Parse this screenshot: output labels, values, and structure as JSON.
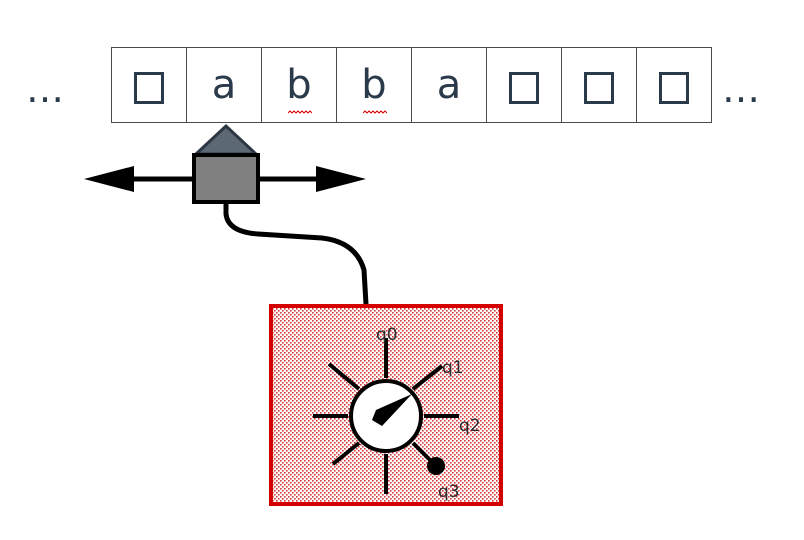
{
  "tape": {
    "left_ellipsis": "…",
    "right_ellipsis": "…",
    "cells": [
      {
        "symbol": "□",
        "blank": true,
        "underlined": false
      },
      {
        "symbol": "a",
        "blank": false,
        "underlined": false
      },
      {
        "symbol": "b",
        "blank": false,
        "underlined": true
      },
      {
        "symbol": "b",
        "blank": false,
        "underlined": true
      },
      {
        "symbol": "a",
        "blank": false,
        "underlined": false
      },
      {
        "symbol": "□",
        "blank": true,
        "underlined": false
      },
      {
        "symbol": "□",
        "blank": true,
        "underlined": false
      },
      {
        "symbol": "□",
        "blank": true,
        "underlined": false
      }
    ]
  },
  "control": {
    "states": [
      "q0",
      "q1",
      "q2",
      "q3"
    ],
    "current_state": "q1",
    "marked_state": "q3",
    "colors": {
      "border": "#d40000",
      "dots": "#d63a3a",
      "head": "#808080",
      "head_top": "#5d6875"
    }
  }
}
